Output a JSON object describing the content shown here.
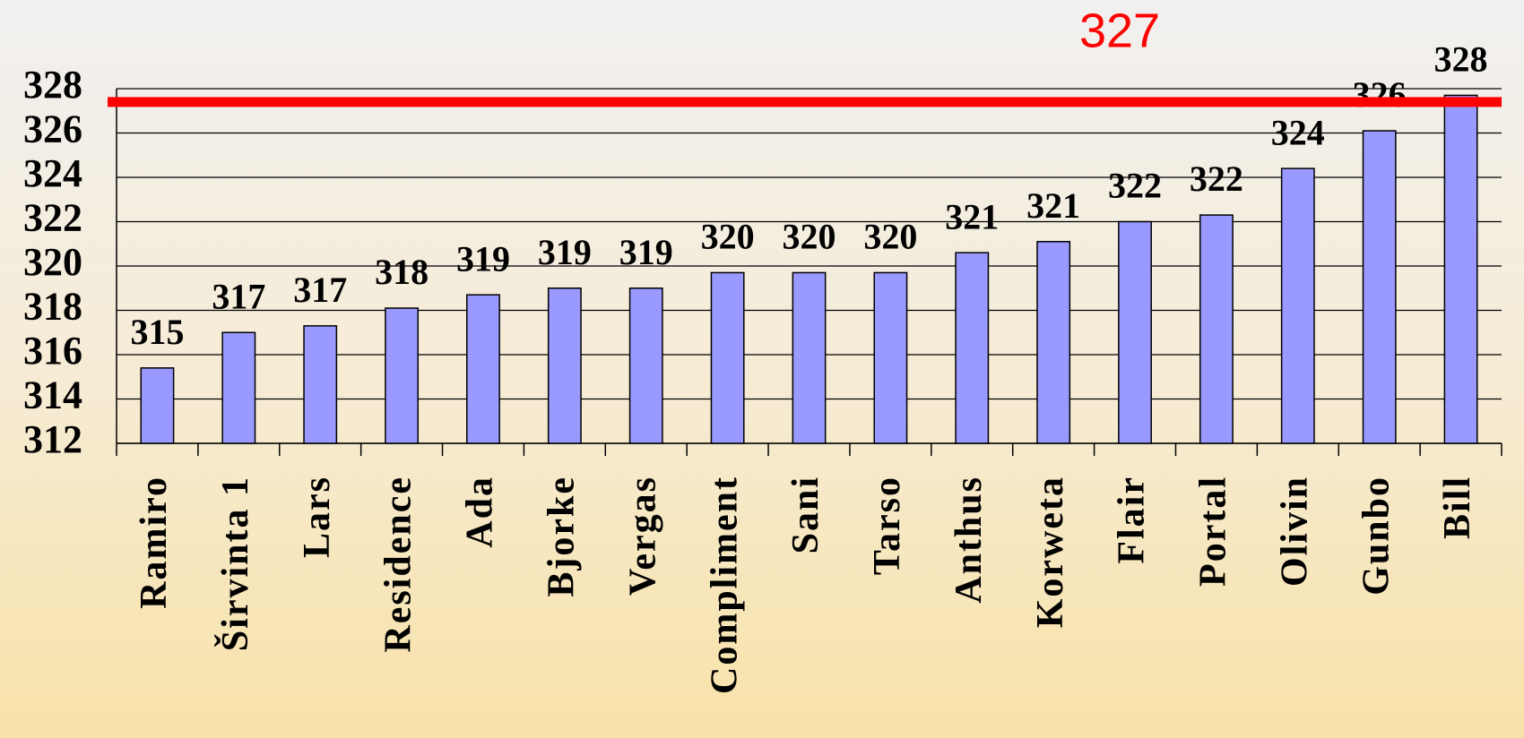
{
  "chart_data": {
    "type": "bar",
    "categories": [
      "Ramiro",
      "Širvinta 1",
      "Lars",
      "Residence",
      "Ada",
      "Bjorke",
      "Vergas",
      "Compliment",
      "Sani",
      "Tarso",
      "Anthus",
      "Korweta",
      "Flair",
      "Portal",
      "Olivin",
      "Gunbo",
      "Bill"
    ],
    "values": [
      315.4,
      317.0,
      317.3,
      318.1,
      318.7,
      319.0,
      319.0,
      319.7,
      319.7,
      319.7,
      320.6,
      321.1,
      322.0,
      322.3,
      324.4,
      326.1,
      327.7
    ],
    "value_labels": [
      "315",
      "317",
      "317",
      "318",
      "319",
      "319",
      "319",
      "320",
      "320",
      "320",
      "321",
      "321",
      "322",
      "322",
      "324",
      "326",
      "328"
    ],
    "color": "#9999ff",
    "ylim": [
      312,
      328
    ],
    "yticks": [
      312,
      314,
      316,
      318,
      320,
      322,
      324,
      326,
      328
    ],
    "grid": true,
    "reference_line": {
      "value": 327.4,
      "label": "327",
      "color": "#ff0000"
    }
  }
}
